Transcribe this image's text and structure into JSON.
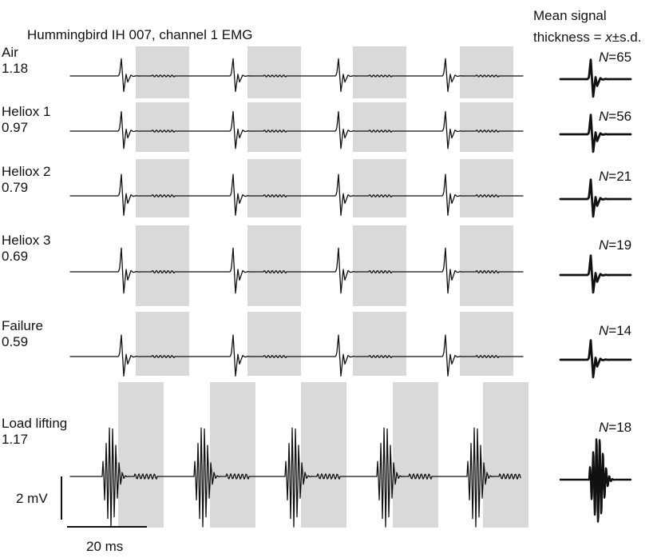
{
  "chart_data": {
    "type": "line",
    "title": "Hummingbird IH 007, channel 1 EMG",
    "mean_header": [
      "Mean signal",
      "thickness = ",
      "x",
      "±s.d."
    ],
    "scale_bar": {
      "y_label": "2 mV",
      "x_label": "20 ms"
    },
    "colors": {
      "trace": "#111111",
      "shade": "#d9d9d9"
    },
    "rows": [
      {
        "condition": "Air",
        "value": "1.18",
        "n_prefix": "N",
        "n_value": "=65",
        "bursts": 4,
        "amplitude_mV": 0.8,
        "oscillations": 1
      },
      {
        "condition": "Heliox 1",
        "value": "0.97",
        "n_prefix": "N",
        "n_value": "=56",
        "bursts": 4,
        "amplitude_mV": 0.9,
        "oscillations": 1
      },
      {
        "condition": "Heliox 2",
        "value": "0.79",
        "n_prefix": "N",
        "n_value": "=21",
        "bursts": 4,
        "amplitude_mV": 1.0,
        "oscillations": 1
      },
      {
        "condition": "Heliox 3",
        "value": "0.69",
        "n_prefix": "N",
        "n_value": "=19",
        "bursts": 4,
        "amplitude_mV": 1.1,
        "oscillations": 1
      },
      {
        "condition": "Failure",
        "value": "0.59",
        "n_prefix": "N",
        "n_value": "=14",
        "bursts": 4,
        "amplitude_mV": 1.0,
        "oscillations": 1
      },
      {
        "condition": "Load lifting",
        "value": "1.17",
        "n_prefix": "N",
        "n_value": "=18",
        "bursts": 5,
        "amplitude_mV": 2.4,
        "oscillations": 5
      }
    ]
  }
}
